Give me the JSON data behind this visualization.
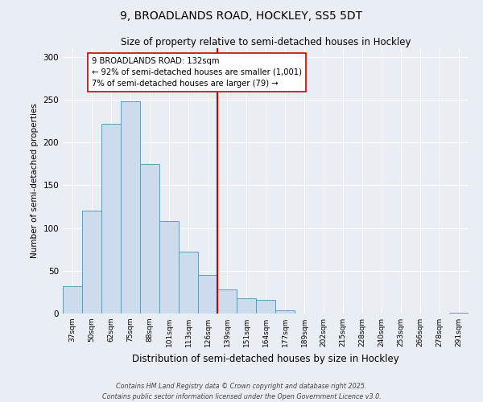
{
  "title1": "9, BROADLANDS ROAD, HOCKLEY, SS5 5DT",
  "title2": "Size of property relative to semi-detached houses in Hockley",
  "xlabel": "Distribution of semi-detached houses by size in Hockley",
  "ylabel": "Number of semi-detached properties",
  "categories": [
    "37sqm",
    "50sqm",
    "62sqm",
    "75sqm",
    "88sqm",
    "101sqm",
    "113sqm",
    "126sqm",
    "139sqm",
    "151sqm",
    "164sqm",
    "177sqm",
    "189sqm",
    "202sqm",
    "215sqm",
    "228sqm",
    "240sqm",
    "253sqm",
    "266sqm",
    "278sqm",
    "291sqm"
  ],
  "values": [
    32,
    120,
    222,
    248,
    175,
    108,
    72,
    45,
    28,
    18,
    16,
    4,
    0,
    0,
    0,
    0,
    0,
    0,
    0,
    0,
    1
  ],
  "bar_color": "#ccdcec",
  "bar_edge_color": "#6699bb",
  "vline_x": 7.5,
  "vline_color": "#cc0000",
  "annotation_text": "9 BROADLANDS ROAD: 132sqm\n← 92% of semi-detached houses are smaller (1,001)\n7% of semi-detached houses are larger (79) →",
  "annotation_box_color": "#ffffff",
  "annotation_box_edge": "#cc0000",
  "ylim": [
    0,
    310
  ],
  "yticks": [
    0,
    50,
    100,
    150,
    200,
    250,
    300
  ],
  "footnote1": "Contains HM Land Registry data © Crown copyright and database right 2025.",
  "footnote2": "Contains public sector information licensed under the Open Government Licence v3.0.",
  "bg_color": "#e8eef4",
  "grid_color": "#ffffff"
}
